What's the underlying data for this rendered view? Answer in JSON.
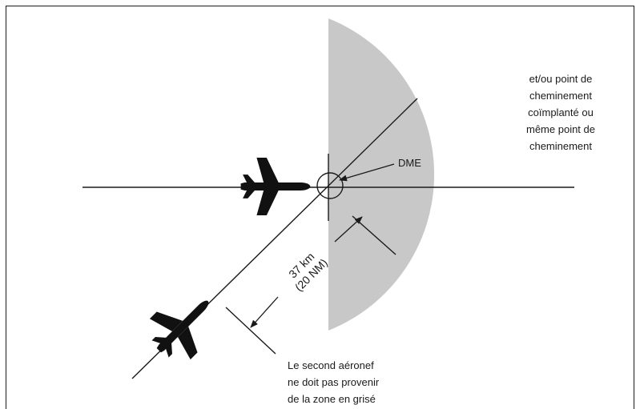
{
  "figure": {
    "area_label_lines": [
      "et/ou point de",
      "cheminement",
      "coïmplanté ou",
      "même point de",
      "cheminement"
    ],
    "dme_label": "DME",
    "distance_label_lines": [
      "37 km",
      "(20 NM)"
    ],
    "note_lines": [
      "Le second aéronef",
      "ne doit pas provenir",
      "de la zone en grisé"
    ]
  },
  "colors": {
    "shaded_zone": "#c8c8c8",
    "lines": "#1a1a1a",
    "aircraft": "#111111"
  },
  "icons": {
    "aircraft_1": "aircraft-icon",
    "aircraft_2": "aircraft-icon"
  }
}
